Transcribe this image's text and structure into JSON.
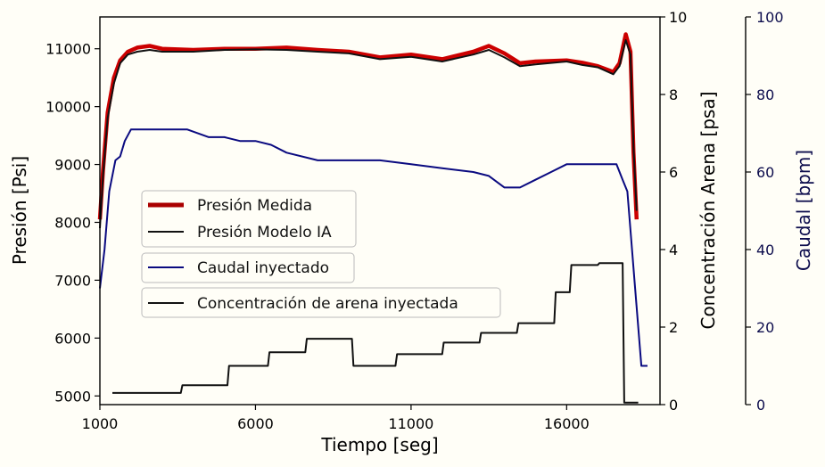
{
  "chart_data": {
    "type": "line",
    "x_axis": {
      "label": "Tiempo [seg]",
      "range": [
        1000,
        19000
      ],
      "ticks": [
        1000,
        6000,
        11000,
        16000
      ]
    },
    "y_left": {
      "label": "Presión [Psi]",
      "range": [
        4850,
        11550
      ],
      "ticks": [
        5000,
        6000,
        7000,
        8000,
        9000,
        10000,
        11000
      ]
    },
    "y_right1": {
      "label": "Concentración Arena [psa]",
      "range": [
        0,
        10
      ],
      "ticks": [
        0,
        2,
        4,
        6,
        8,
        10
      ]
    },
    "y_right2": {
      "label": "Caudal [bpm]",
      "range": [
        0,
        100
      ],
      "ticks": [
        0,
        20,
        40,
        60,
        80,
        100
      ]
    },
    "legend_pressure": {
      "placement": "center-left",
      "entries": [
        {
          "label": "Presión Medida",
          "color": "#cc0000"
        },
        {
          "label": "Presión Modelo IA",
          "color": "#111111"
        }
      ]
    },
    "legend_caudal": {
      "label": "Caudal inyectado",
      "color": "#0a0a80"
    },
    "legend_arena": {
      "label": "Concentración de arena inyectada",
      "color": "#111111"
    },
    "series": [
      {
        "name": "Presión Medida",
        "axis": "left",
        "color": "#cc0000",
        "x": [
          1000,
          1100,
          1250,
          1450,
          1650,
          1900,
          2200,
          2600,
          3000,
          4000,
          5000,
          6000,
          7000,
          8000,
          9000,
          10000,
          11000,
          12000,
          13000,
          13500,
          14000,
          14500,
          15000,
          16000,
          16500,
          17000,
          17500,
          17700,
          17900,
          18050,
          18150,
          18250
        ],
        "y": [
          8050,
          8900,
          9900,
          10500,
          10800,
          10950,
          11020,
          11050,
          11000,
          10980,
          11000,
          11000,
          11020,
          10980,
          10950,
          10850,
          10900,
          10820,
          10950,
          11050,
          10920,
          10750,
          10780,
          10800,
          10760,
          10700,
          10600,
          10750,
          11250,
          10950,
          9200,
          8050
        ]
      },
      {
        "name": "Presión Modelo IA",
        "axis": "left",
        "color": "#111111",
        "x": [
          1000,
          1100,
          1250,
          1450,
          1650,
          1900,
          2200,
          2600,
          3000,
          4000,
          5000,
          6000,
          7000,
          8000,
          9000,
          10000,
          11000,
          12000,
          13000,
          13500,
          14000,
          14500,
          15000,
          16000,
          16500,
          17000,
          17500,
          17700,
          17900,
          18050,
          18150,
          18250
        ],
        "y": [
          7900,
          8800,
          9800,
          10400,
          10750,
          10900,
          10950,
          10980,
          10950,
          10950,
          10980,
          10990,
          10980,
          10950,
          10920,
          10820,
          10860,
          10780,
          10900,
          10980,
          10850,
          10700,
          10730,
          10780,
          10720,
          10680,
          10560,
          10700,
          11150,
          10900,
          9300,
          8200
        ]
      },
      {
        "name": "Caudal inyectado",
        "axis": "right2",
        "color": "#0a0a80",
        "x": [
          1000,
          1150,
          1300,
          1500,
          1650,
          1800,
          2000,
          2400,
          3000,
          3800,
          4500,
          5000,
          5500,
          6000,
          6500,
          7000,
          8000,
          9000,
          10000,
          11000,
          12000,
          13000,
          13500,
          14000,
          14500,
          15000,
          15500,
          16000,
          16500,
          17000,
          17600,
          17800,
          17950,
          18050,
          18200,
          18300,
          18400,
          18600
        ],
        "y": [
          30,
          40,
          55,
          63,
          64,
          68,
          71,
          71,
          71,
          71,
          69,
          69,
          68,
          68,
          67,
          65,
          63,
          63,
          63,
          62,
          61,
          60,
          59,
          56,
          56,
          58,
          60,
          62,
          62,
          62,
          62,
          58,
          55,
          45,
          30,
          20,
          10,
          10
        ]
      },
      {
        "name": "Concentración de arena inyectada",
        "axis": "right1",
        "color": "#111111",
        "x": [
          1400,
          1450,
          3600,
          3650,
          5100,
          5150,
          6400,
          6450,
          7600,
          7650,
          9100,
          9150,
          10500,
          10550,
          12000,
          12050,
          13200,
          13250,
          14400,
          14450,
          15600,
          15650,
          16100,
          16150,
          17000,
          17050,
          17800,
          17850,
          18300
        ],
        "y": [
          0.3,
          0.3,
          0.3,
          0.5,
          0.5,
          1.0,
          1.0,
          1.35,
          1.35,
          1.7,
          1.7,
          1.0,
          1.0,
          1.3,
          1.3,
          1.6,
          1.6,
          1.85,
          1.85,
          2.1,
          2.1,
          2.9,
          2.9,
          3.6,
          3.6,
          3.65,
          3.65,
          0.05,
          0.05
        ]
      }
    ]
  }
}
